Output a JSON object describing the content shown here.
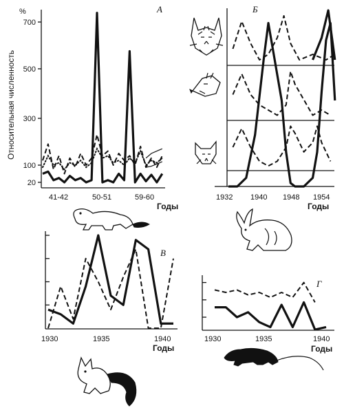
{
  "figure": {
    "ylabel": "Относительная численность",
    "percent_sign": "%"
  },
  "chart_data": [
    {
      "id": "A",
      "type": "line",
      "panel_label": "А",
      "xlabel": "Годы",
      "x_ticks": [
        "41-42",
        "50-51",
        "59-60"
      ],
      "y_ticks": [
        20,
        100,
        300,
        500,
        700
      ],
      "series": [
        {
          "style": "solid",
          "x": [
            0,
            1,
            2,
            3,
            4,
            5,
            6,
            7,
            8,
            9,
            10,
            11,
            12,
            13,
            14,
            15,
            16,
            17,
            18,
            19,
            20,
            21,
            22
          ],
          "values": [
            60,
            70,
            30,
            40,
            20,
            50,
            30,
            40,
            20,
            30,
            740,
            20,
            30,
            20,
            60,
            30,
            575,
            20,
            60,
            25,
            55,
            20,
            60
          ]
        },
        {
          "style": "dashed",
          "x": [
            0,
            1,
            2,
            3,
            4,
            5,
            6,
            7,
            8,
            9,
            10,
            11,
            12,
            13,
            14,
            15,
            16,
            17,
            18,
            19,
            20,
            21,
            22
          ],
          "values": [
            120,
            190,
            80,
            140,
            60,
            130,
            90,
            150,
            100,
            130,
            230,
            140,
            160,
            100,
            150,
            120,
            140,
            100,
            180,
            90,
            130,
            90,
            140
          ]
        },
        {
          "style": "dotted",
          "x": [
            0,
            1,
            2,
            3,
            4,
            5,
            6,
            7,
            8,
            9,
            10,
            11,
            12,
            13,
            14,
            15,
            16,
            17,
            18,
            19,
            20,
            21,
            22
          ],
          "values": [
            90,
            140,
            100,
            110,
            80,
            110,
            100,
            120,
            90,
            110,
            170,
            130,
            140,
            110,
            120,
            100,
            130,
            110,
            160,
            100,
            120,
            110,
            130
          ]
        },
        {
          "style": "thin",
          "x": [
            19,
            20,
            21,
            22
          ],
          "values": [
            130,
            150,
            160,
            170
          ]
        },
        {
          "style": "thin",
          "x": [
            19,
            20,
            21,
            22
          ],
          "values": [
            90,
            95,
            105,
            115
          ]
        }
      ]
    },
    {
      "id": "B",
      "type": "line",
      "panel_label": "Б",
      "xlabel": "Годы",
      "x_ticks": [
        1932,
        1940,
        1948,
        1954
      ],
      "series": [
        {
          "style": "solid",
          "note": "top row",
          "x": [
            1950,
            1952,
            1953.5,
            1955
          ],
          "values": [
            0.1,
            0.5,
            1.0,
            0.1
          ]
        },
        {
          "style": "dashed",
          "note": "top row",
          "x": [
            1932,
            1934,
            1936,
            1938,
            1940,
            1942,
            1943.5,
            1945,
            1947,
            1950,
            1953,
            1955
          ],
          "values": [
            0.3,
            0.8,
            0.4,
            0.1,
            0.2,
            0.5,
            0.9,
            0.4,
            0.1,
            0.2,
            0.1,
            0.2
          ]
        },
        {
          "style": "solid",
          "note": "bottom span",
          "x": [
            1931,
            1933,
            1935,
            1937,
            1939,
            1940,
            1941,
            1943,
            1944,
            1945,
            1946,
            1948,
            1950,
            1951,
            1952,
            1953,
            1954,
            1955
          ],
          "values": [
            0,
            0,
            0.05,
            0.3,
            0.75,
            0.95,
            0.8,
            0.5,
            0.2,
            0.02,
            0,
            0,
            0.05,
            0.2,
            0.55,
            0.85,
            0.95,
            0.5
          ]
        },
        {
          "style": "dashed",
          "note": "middle row",
          "x": [
            1932,
            1934,
            1936,
            1938,
            1940,
            1942,
            1944,
            1945,
            1946,
            1948,
            1950,
            1952,
            1954
          ],
          "values": [
            0.5,
            0.9,
            0.5,
            0.3,
            0.2,
            0.1,
            0.3,
            0.95,
            0.7,
            0.4,
            0.1,
            0.2,
            0.1
          ]
        },
        {
          "style": "dashed",
          "note": "bottom row",
          "x": [
            1932,
            1934,
            1936,
            1938,
            1940,
            1942,
            1944,
            1945,
            1946,
            1948,
            1950,
            1951,
            1952,
            1954
          ],
          "values": [
            0.5,
            0.9,
            0.5,
            0.2,
            0.1,
            0.2,
            0.5,
            0.95,
            0.8,
            0.4,
            0.6,
            0.95,
            0.6,
            0.2
          ]
        }
      ]
    },
    {
      "id": "V",
      "type": "line",
      "panel_label": "В",
      "xlabel": "Годы",
      "x_ticks": [
        1930,
        1935,
        1940
      ],
      "series": [
        {
          "style": "solid",
          "x": [
            1930,
            1931,
            1932,
            1933,
            1934,
            1935,
            1936,
            1937,
            1938,
            1939,
            1940
          ],
          "values": [
            0.2,
            0.15,
            0.05,
            0.45,
            1.0,
            0.35,
            0.25,
            0.95,
            0.85,
            0.05,
            0.05
          ]
        },
        {
          "style": "dashed",
          "x": [
            1930,
            1931,
            1932,
            1933,
            1934,
            1935,
            1936,
            1937,
            1938,
            1939,
            1940
          ],
          "values": [
            0.0,
            0.45,
            0.1,
            0.75,
            0.5,
            0.2,
            0.55,
            0.85,
            0.0,
            0.0,
            0.75
          ]
        }
      ]
    },
    {
      "id": "G",
      "type": "line",
      "panel_label": "Г",
      "xlabel": "Годы",
      "x_ticks": [
        1930,
        1935,
        1940
      ],
      "series": [
        {
          "style": "solid",
          "x": [
            1930,
            1931,
            1932,
            1933,
            1934,
            1935,
            1936,
            1937,
            1938,
            1939,
            1940
          ],
          "values": [
            0.45,
            0.45,
            0.25,
            0.35,
            0.15,
            0.05,
            0.5,
            0.05,
            0.55,
            0.0,
            0.05
          ]
        },
        {
          "style": "dashed",
          "x": [
            1930,
            1931,
            1932,
            1933,
            1934,
            1935,
            1936,
            1937,
            1938,
            1939
          ],
          "values": [
            0.8,
            0.75,
            0.8,
            0.7,
            0.75,
            0.65,
            0.75,
            0.65,
            0.95,
            0.55
          ]
        }
      ]
    }
  ]
}
